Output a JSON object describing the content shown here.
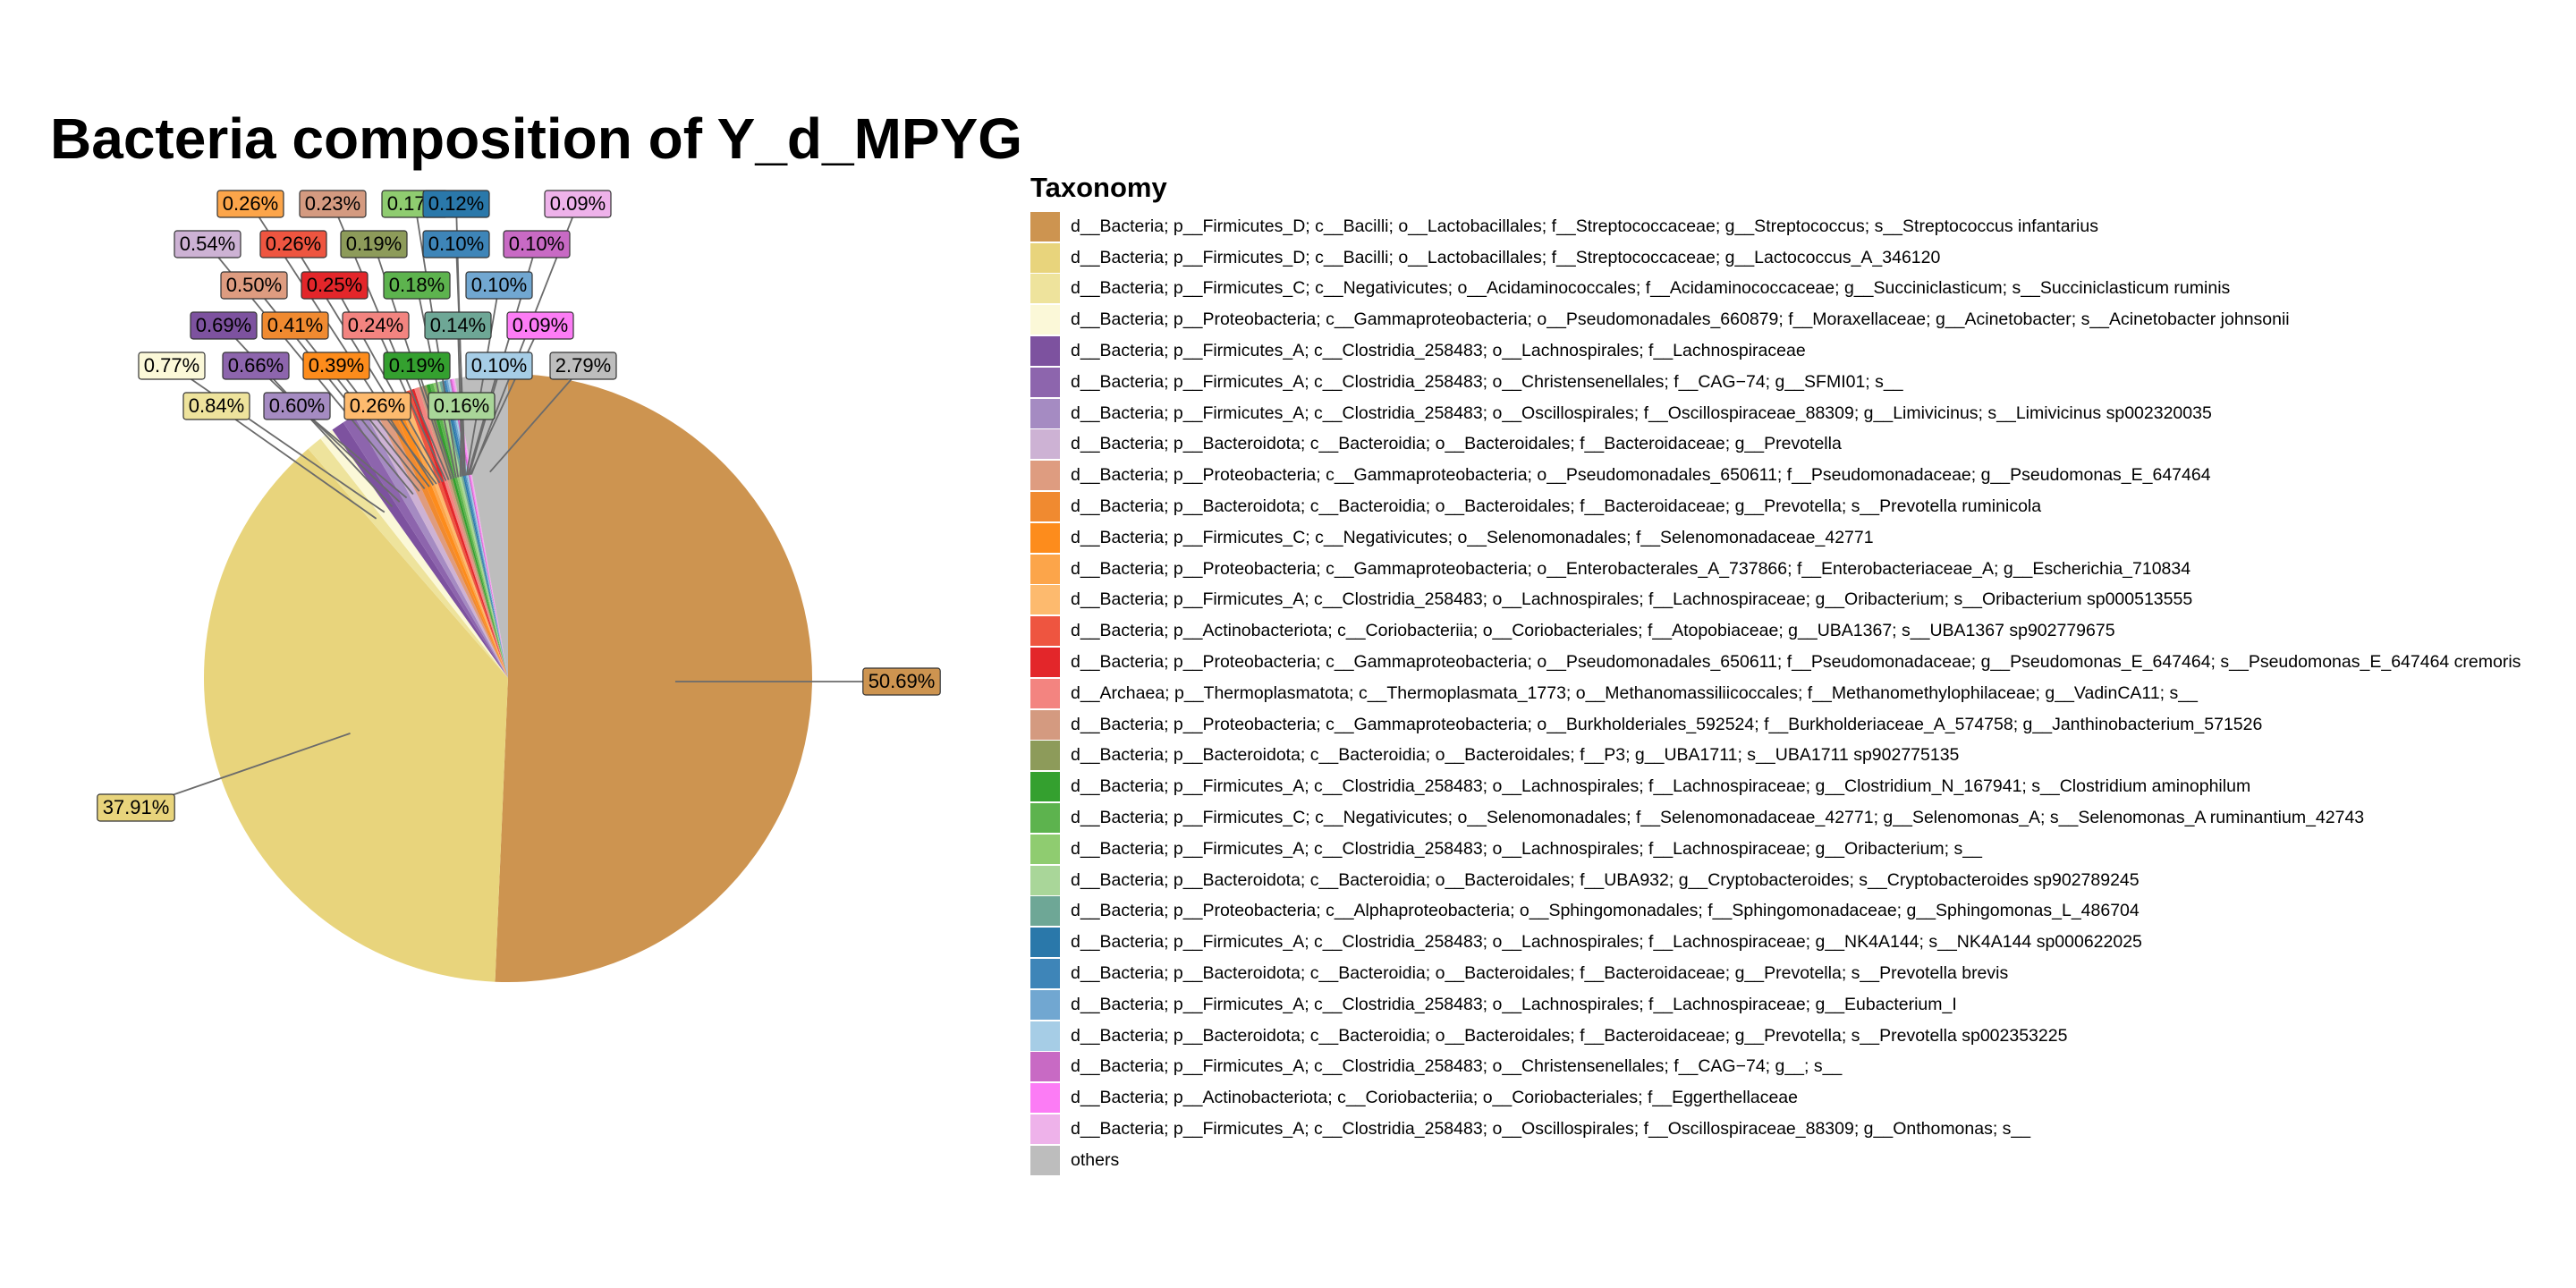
{
  "chart_data": {
    "type": "pie",
    "title": "Bacteria composition of Y_d_MPYG",
    "legend_title": "Taxonomy",
    "legend_position": "right",
    "slices": [
      {
        "name": "d__Bacteria; p__Firmicutes_D; c__Bacilli; o__Lactobacillales; f__Streptococcaceae; g__Streptococcus; s__Streptococcus infantarius",
        "value": 50.69,
        "label": "50.69%",
        "color": "#CD9450"
      },
      {
        "name": "d__Bacteria; p__Firmicutes_D; c__Bacilli; o__Lactobacillales; f__Streptococcaceae; g__Lactococcus_A_346120",
        "value": 37.91,
        "label": "37.91%",
        "color": "#E8D47C"
      },
      {
        "name": "d__Bacteria; p__Firmicutes_C; c__Negativicutes; o__Acidaminococcales; f__Acidaminococcaceae; g__Succiniclasticum; s__Succiniclasticum ruminis",
        "value": 0.84,
        "label": "0.84%",
        "color": "#EEE39C"
      },
      {
        "name": "d__Bacteria; p__Proteobacteria; c__Gammaproteobacteria; o__Pseudomonadales_660879; f__Moraxellaceae; g__Acinetobacter; s__Acinetobacter johnsonii",
        "value": 0.77,
        "label": "0.77%",
        "color": "#FBF8D8"
      },
      {
        "name": "d__Bacteria; p__Firmicutes_A; c__Clostridia_258483; o__Lachnospirales; f__Lachnospiraceae",
        "value": 0.69,
        "label": "0.69%",
        "color": "#7D529F"
      },
      {
        "name": "d__Bacteria; p__Firmicutes_A; c__Clostridia_258483; o__Christensenellales; f__CAG−74; g__SFMI01; s__",
        "value": 0.66,
        "label": "0.66%",
        "color": "#8D65AD"
      },
      {
        "name": "d__Bacteria; p__Firmicutes_A; c__Clostridia_258483; o__Oscillospirales; f__Oscillospiraceae_88309; g__Limivicinus; s__Limivicinus sp002320035",
        "value": 0.6,
        "label": "0.60%",
        "color": "#A58BC2"
      },
      {
        "name": "d__Bacteria; p__Bacteroidota; c__Bacteroidia; o__Bacteroidales; f__Bacteroidaceae; g__Prevotella",
        "value": 0.54,
        "label": "0.54%",
        "color": "#CDB2D4"
      },
      {
        "name": "d__Bacteria; p__Proteobacteria; c__Gammaproteobacteria; o__Pseudomonadales_650611; f__Pseudomonadaceae; g__Pseudomonas_E_647464",
        "value": 0.5,
        "label": "0.50%",
        "color": "#DE9C80"
      },
      {
        "name": "d__Bacteria; p__Bacteroidota; c__Bacteroidia; o__Bacteroidales; f__Bacteroidaceae; g__Prevotella; s__Prevotella ruminicola",
        "value": 0.41,
        "label": "0.41%",
        "color": "#F08A30"
      },
      {
        "name": "d__Bacteria; p__Firmicutes_C; c__Negativicutes; o__Selenomonadales; f__Selenomonadaceae_42771",
        "value": 0.39,
        "label": "0.39%",
        "color": "#FD8C1C"
      },
      {
        "name": "d__Bacteria; p__Proteobacteria; c__Gammaproteobacteria; o__Enterobacterales_A_737866; f__Enterobacteriaceae_A; g__Escherichia_710834",
        "value": 0.26,
        "label": "0.26%",
        "color": "#FCA54A"
      },
      {
        "name": "d__Bacteria; p__Firmicutes_A; c__Clostridia_258483; o__Lachnospirales; f__Lachnospiraceae; g__Oribacterium; s__Oribacterium sp000513555",
        "value": 0.26,
        "label": "0.26%",
        "color": "#FDBA6E"
      },
      {
        "name": "d__Bacteria; p__Actinobacteriota; c__Coriobacteriia; o__Coriobacteriales; f__Atopobiaceae; g__UBA1367; s__UBA1367 sp902779675",
        "value": 0.26,
        "label": "0.26%",
        "color": "#EE5540"
      },
      {
        "name": "d__Bacteria; p__Proteobacteria; c__Gammaproteobacteria; o__Pseudomonadales_650611; f__Pseudomonadaceae; g__Pseudomonas_E_647464; s__Pseudomonas_E_647464 cremoris",
        "value": 0.25,
        "label": "0.25%",
        "color": "#E3262A"
      },
      {
        "name": "d__Archaea; p__Thermoplasmatota; c__Thermoplasmata_1773; o__Methanomassiliicoccales; f__Methanomethylophilaceae; g__VadinCA11; s__",
        "value": 0.24,
        "label": "0.24%",
        "color": "#F38480"
      },
      {
        "name": "d__Bacteria; p__Proteobacteria; c__Gammaproteobacteria; o__Burkholderiales_592524; f__Burkholderiaceae_A_574758; g__Janthinobacterium_571526",
        "value": 0.23,
        "label": "0.23%",
        "color": "#D49A80"
      },
      {
        "name": "d__Bacteria; p__Bacteroidota; c__Bacteroidia; o__Bacteroidales; f__P3; g__UBA1711; s__UBA1711 sp902775135",
        "value": 0.19,
        "label": "0.19%",
        "color": "#8D9B5A"
      },
      {
        "name": "d__Bacteria; p__Firmicutes_A; c__Clostridia_258483; o__Lachnospirales; f__Lachnospiraceae; g__Clostridium_N_167941; s__Clostridium aminophilum",
        "value": 0.19,
        "label": "0.19%",
        "color": "#34A02F"
      },
      {
        "name": "d__Bacteria; p__Firmicutes_C; c__Negativicutes; o__Selenomonadales; f__Selenomonadaceae_42771; g__Selenomonas_A; s__Selenomonas_A ruminantium_42743",
        "value": 0.18,
        "label": "0.18%",
        "color": "#5DB34E"
      },
      {
        "name": "d__Bacteria; p__Firmicutes_A; c__Clostridia_258483; o__Lachnospirales; f__Lachnospiraceae; g__Oribacterium; s__",
        "value": 0.17,
        "label": "0.17%",
        "color": "#8FCC70"
      },
      {
        "name": "d__Bacteria; p__Bacteroidota; c__Bacteroidia; o__Bacteroidales; f__UBA932; g__Cryptobacteroides; s__Cryptobacteroides sp902789245",
        "value": 0.16,
        "label": "0.16%",
        "color": "#A9D699"
      },
      {
        "name": "d__Bacteria; p__Proteobacteria; c__Alphaproteobacteria; o__Sphingomonadales; f__Sphingomonadaceae; g__Sphingomonas_L_486704",
        "value": 0.14,
        "label": "0.14%",
        "color": "#6EA796"
      },
      {
        "name": "d__Bacteria; p__Firmicutes_A; c__Clostridia_258483; o__Lachnospirales; f__Lachnospiraceae; g__NK4A144; s__NK4A144 sp000622025",
        "value": 0.12,
        "label": "0.12%",
        "color": "#2A78AA"
      },
      {
        "name": "d__Bacteria; p__Bacteroidota; c__Bacteroidia; o__Bacteroidales; f__Bacteroidaceae; g__Prevotella; s__Prevotella brevis",
        "value": 0.1,
        "label": "0.10%",
        "color": "#3E85B8"
      },
      {
        "name": "d__Bacteria; p__Firmicutes_A; c__Clostridia_258483; o__Lachnospirales; f__Lachnospiraceae; g__Eubacterium_I",
        "value": 0.1,
        "label": "0.10%",
        "color": "#71A7D1"
      },
      {
        "name": "d__Bacteria; p__Bacteroidota; c__Bacteroidia; o__Bacteroidales; f__Bacteroidaceae; g__Prevotella; s__Prevotella sp002353225",
        "value": 0.1,
        "label": "0.10%",
        "color": "#A6CDE6"
      },
      {
        "name": "d__Bacteria; p__Firmicutes_A; c__Clostridia_258483; o__Christensenellales; f__CAG−74; g__; s__",
        "value": 0.1,
        "label": "0.10%",
        "color": "#C86AC4"
      },
      {
        "name": "d__Bacteria; p__Actinobacteriota; c__Coriobacteriia; o__Coriobacteriales; f__Eggerthellaceae",
        "value": 0.09,
        "label": "0.09%",
        "color": "#FC7CF5"
      },
      {
        "name": "d__Bacteria; p__Firmicutes_A; c__Clostridia_258483; o__Oscillospirales; f__Oscillospiraceae_88309; g__Onthomonas; s__",
        "value": 0.09,
        "label": "0.09%",
        "color": "#EEB2EA"
      },
      {
        "name": "others",
        "value": 2.79,
        "label": "2.79%",
        "color": "#BDBDBD"
      }
    ]
  }
}
